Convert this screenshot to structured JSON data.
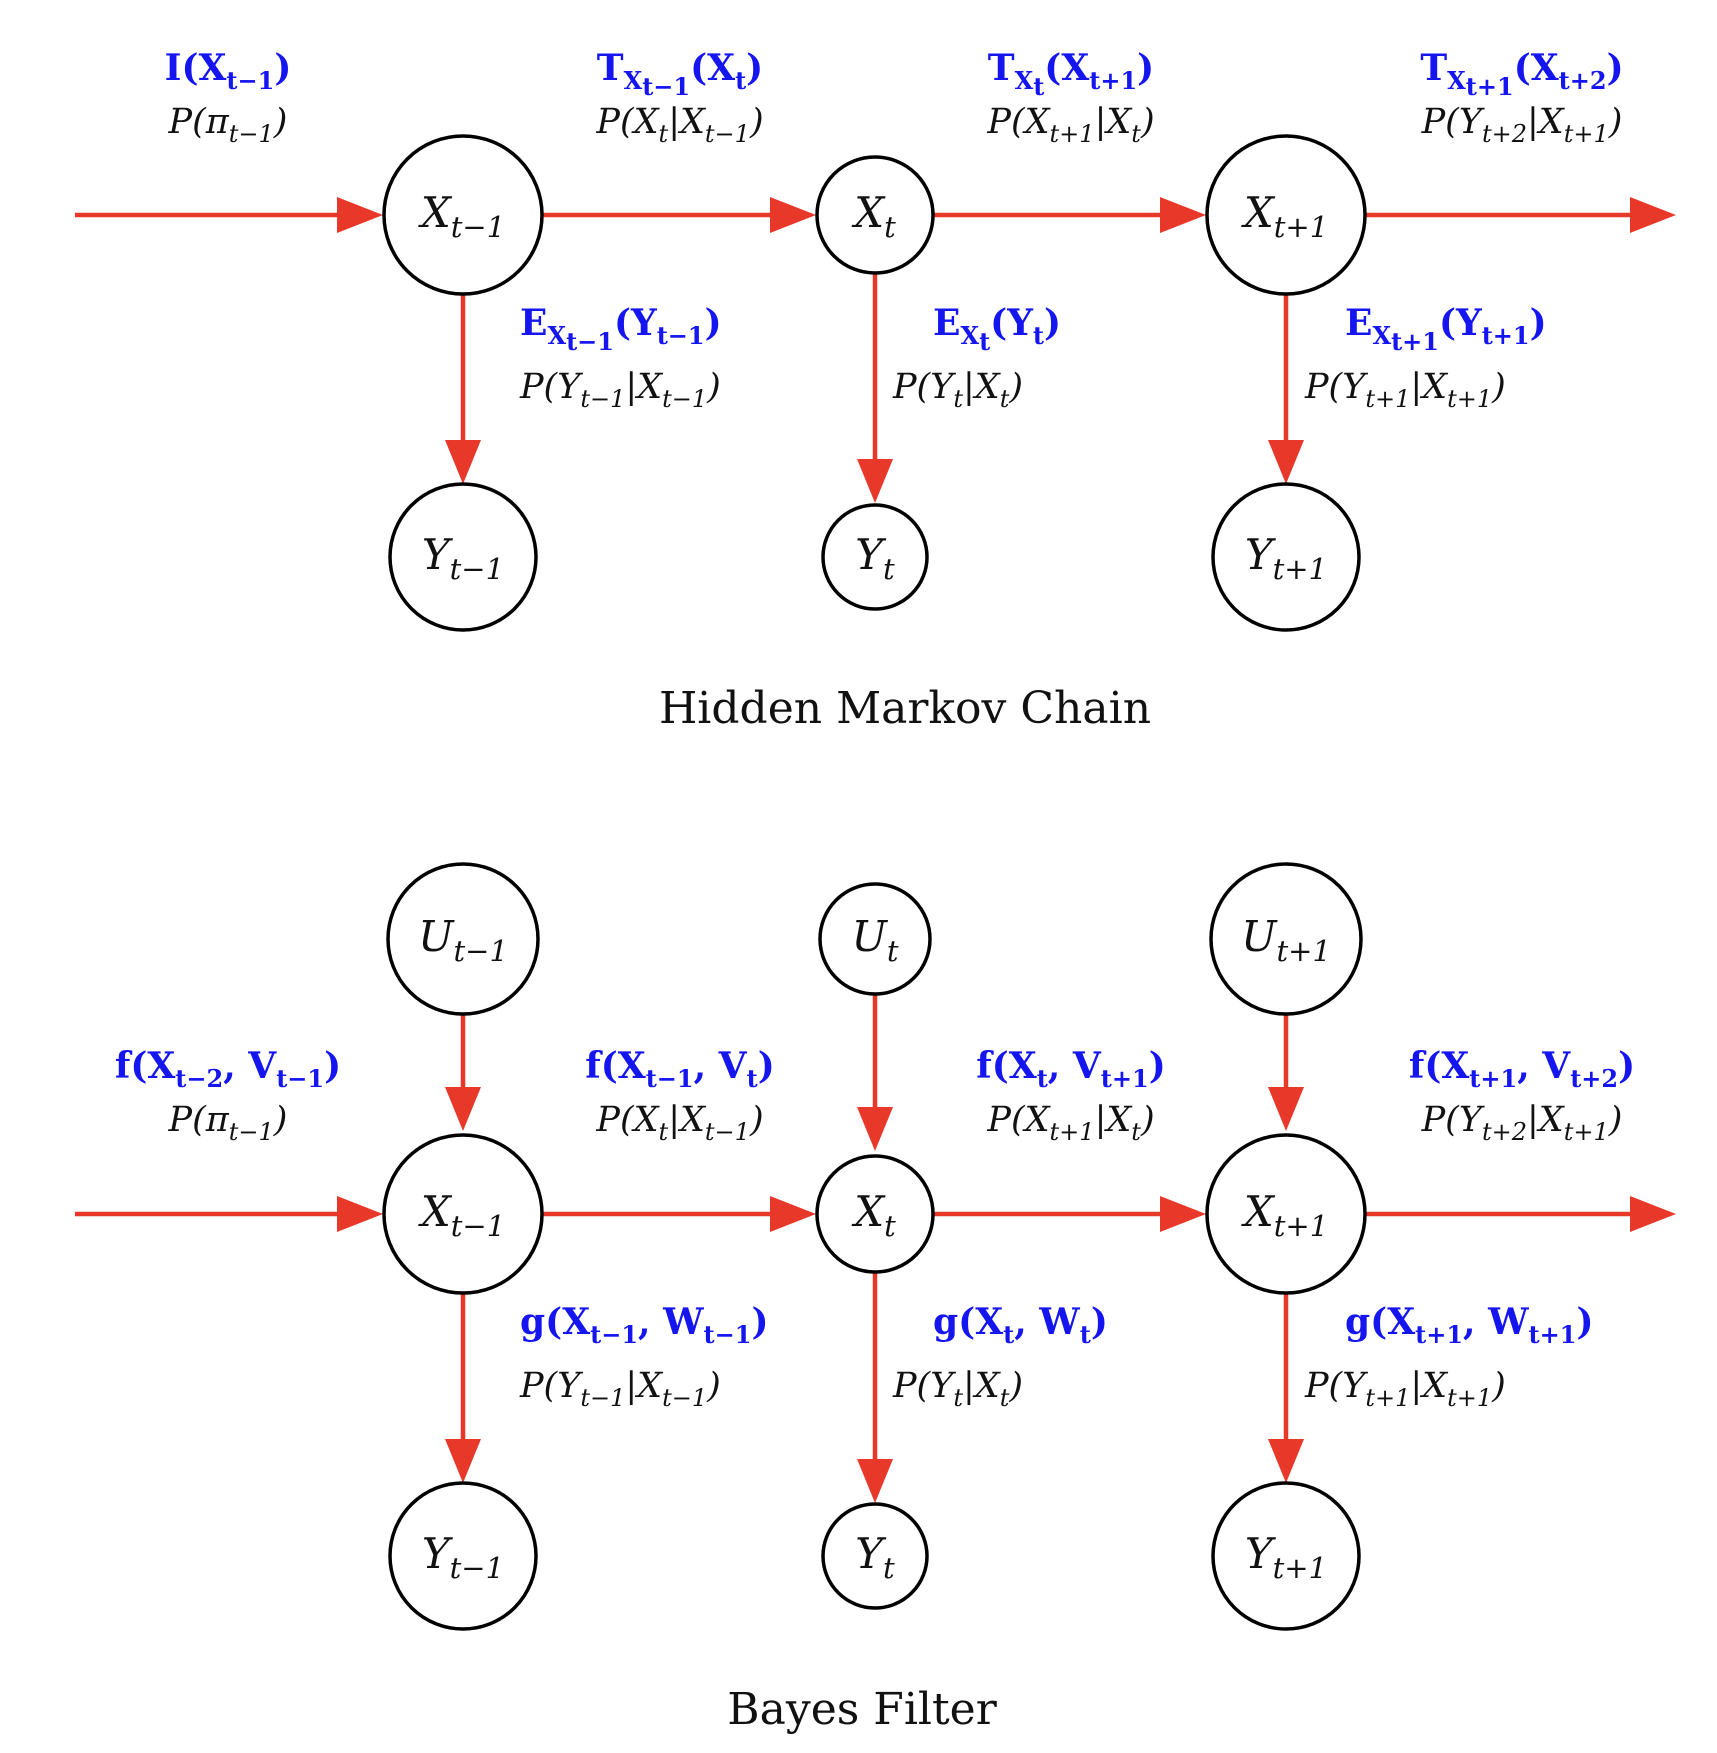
{
  "panels": [
    {
      "caption": "Hidden Markov Chain",
      "nodes": {
        "x_prev": {
          "base": "X",
          "sub": "t−1"
        },
        "x_cur": {
          "base": "X",
          "sub": "t"
        },
        "x_next": {
          "base": "X",
          "sub": "t+1"
        },
        "y_prev": {
          "base": "Y",
          "sub": "t−1"
        },
        "y_cur": {
          "base": "Y",
          "sub": "t"
        },
        "y_next": {
          "base": "Y",
          "sub": "t+1"
        }
      },
      "horizontal_labels": [
        {
          "blue": [
            [
              "I(X",
              ""
            ],
            [
              "t−1",
              "sub"
            ],
            [
              ")",
              ""
            ]
          ],
          "black": [
            [
              "P(π",
              ""
            ],
            [
              "t−1",
              "sub"
            ],
            [
              ")",
              ""
            ]
          ]
        },
        {
          "blue": [
            [
              "T",
              ""
            ],
            [
              "X",
              "sub"
            ],
            [
              "t−1",
              "subsub"
            ],
            [
              "(X",
              ""
            ],
            [
              "t",
              "sub"
            ],
            [
              ")",
              ""
            ]
          ],
          "black": [
            [
              "P(X",
              ""
            ],
            [
              "t",
              "sub"
            ],
            [
              "|X",
              ""
            ],
            [
              "t−1",
              "sub"
            ],
            [
              ")",
              ""
            ]
          ]
        },
        {
          "blue": [
            [
              "T",
              ""
            ],
            [
              "X",
              "sub"
            ],
            [
              "t",
              "subsub"
            ],
            [
              "(X",
              ""
            ],
            [
              "t+1",
              "sub"
            ],
            [
              ")",
              ""
            ]
          ],
          "black": [
            [
              "P(X",
              ""
            ],
            [
              "t+1",
              "sub"
            ],
            [
              "|X",
              ""
            ],
            [
              "t",
              "sub"
            ],
            [
              ")",
              ""
            ]
          ]
        },
        {
          "blue": [
            [
              "T",
              ""
            ],
            [
              "X",
              "sub"
            ],
            [
              "t+1",
              "subsub"
            ],
            [
              "(X",
              ""
            ],
            [
              "t+2",
              "sub"
            ],
            [
              ")",
              ""
            ]
          ],
          "black": [
            [
              "P(Y",
              ""
            ],
            [
              "t+2",
              "sub"
            ],
            [
              "|X",
              ""
            ],
            [
              "t+1",
              "sub"
            ],
            [
              ")",
              ""
            ]
          ]
        }
      ],
      "vertical_labels": [
        {
          "blue": [
            [
              "E",
              ""
            ],
            [
              "X",
              "sub"
            ],
            [
              "t−1",
              "subsub"
            ],
            [
              "(Y",
              ""
            ],
            [
              "t−1",
              "sub"
            ],
            [
              ")",
              ""
            ]
          ],
          "black": [
            [
              "P(Y",
              ""
            ],
            [
              "t−1",
              "sub"
            ],
            [
              "|X",
              ""
            ],
            [
              "t−1",
              "sub"
            ],
            [
              ")",
              ""
            ]
          ]
        },
        {
          "blue": [
            [
              "E",
              ""
            ],
            [
              "X",
              "sub"
            ],
            [
              "t",
              "subsub"
            ],
            [
              "(Y",
              ""
            ],
            [
              "t",
              "sub"
            ],
            [
              ")",
              ""
            ]
          ],
          "black": [
            [
              "P(Y",
              ""
            ],
            [
              "t",
              "sub"
            ],
            [
              "|X",
              ""
            ],
            [
              "t",
              "sub"
            ],
            [
              ")",
              ""
            ]
          ]
        },
        {
          "blue": [
            [
              "E",
              ""
            ],
            [
              "X",
              "sub"
            ],
            [
              "t+1",
              "subsub"
            ],
            [
              "(Y",
              ""
            ],
            [
              "t+1",
              "sub"
            ],
            [
              ")",
              ""
            ]
          ],
          "black": [
            [
              "P(Y",
              ""
            ],
            [
              "t+1",
              "sub"
            ],
            [
              "|X",
              ""
            ],
            [
              "t+1",
              "sub"
            ],
            [
              ")",
              ""
            ]
          ]
        }
      ]
    },
    {
      "caption": "Bayes Filter",
      "nodes": {
        "u_prev": {
          "base": "U",
          "sub": "t−1"
        },
        "u_cur": {
          "base": "U",
          "sub": "t"
        },
        "u_next": {
          "base": "U",
          "sub": "t+1"
        },
        "x_prev": {
          "base": "X",
          "sub": "t−1"
        },
        "x_cur": {
          "base": "X",
          "sub": "t"
        },
        "x_next": {
          "base": "X",
          "sub": "t+1"
        },
        "y_prev": {
          "base": "Y",
          "sub": "t−1"
        },
        "y_cur": {
          "base": "Y",
          "sub": "t"
        },
        "y_next": {
          "base": "Y",
          "sub": "t+1"
        }
      },
      "horizontal_labels": [
        {
          "blue": [
            [
              "f(X",
              ""
            ],
            [
              "t−2",
              "sub"
            ],
            [
              ", V",
              ""
            ],
            [
              "t−1",
              "sub"
            ],
            [
              ")",
              ""
            ]
          ],
          "black": [
            [
              "P(π",
              ""
            ],
            [
              "t−1",
              "sub"
            ],
            [
              ")",
              ""
            ]
          ]
        },
        {
          "blue": [
            [
              "f(X",
              ""
            ],
            [
              "t−1",
              "sub"
            ],
            [
              ", V",
              ""
            ],
            [
              "t",
              "sub"
            ],
            [
              ")",
              ""
            ]
          ],
          "black": [
            [
              "P(X",
              ""
            ],
            [
              "t",
              "sub"
            ],
            [
              "|X",
              ""
            ],
            [
              "t−1",
              "sub"
            ],
            [
              ")",
              ""
            ]
          ]
        },
        {
          "blue": [
            [
              "f(X",
              ""
            ],
            [
              "t",
              "sub"
            ],
            [
              ", V",
              ""
            ],
            [
              "t+1",
              "sub"
            ],
            [
              ")",
              ""
            ]
          ],
          "black": [
            [
              "P(X",
              ""
            ],
            [
              "t+1",
              "sub"
            ],
            [
              "|X",
              ""
            ],
            [
              "t",
              "sub"
            ],
            [
              ")",
              ""
            ]
          ]
        },
        {
          "blue": [
            [
              "f(X",
              ""
            ],
            [
              "t+1",
              "sub"
            ],
            [
              ", V",
              ""
            ],
            [
              "t+2",
              "sub"
            ],
            [
              ")",
              ""
            ]
          ],
          "black": [
            [
              "P(Y",
              ""
            ],
            [
              "t+2",
              "sub"
            ],
            [
              "|X",
              ""
            ],
            [
              "t+1",
              "sub"
            ],
            [
              ")",
              ""
            ]
          ]
        }
      ],
      "vertical_labels": [
        {
          "blue": [
            [
              "g(X",
              ""
            ],
            [
              "t−1",
              "sub"
            ],
            [
              ", W",
              ""
            ],
            [
              "t−1",
              "sub"
            ],
            [
              ")",
              ""
            ]
          ],
          "black": [
            [
              "P(Y",
              ""
            ],
            [
              "t−1",
              "sub"
            ],
            [
              "|X",
              ""
            ],
            [
              "t−1",
              "sub"
            ],
            [
              ")",
              ""
            ]
          ]
        },
        {
          "blue": [
            [
              "g(X",
              ""
            ],
            [
              "t",
              "sub"
            ],
            [
              ", W",
              ""
            ],
            [
              "t",
              "sub"
            ],
            [
              ")",
              ""
            ]
          ],
          "black": [
            [
              "P(Y",
              ""
            ],
            [
              "t",
              "sub"
            ],
            [
              "|X",
              ""
            ],
            [
              "t",
              "sub"
            ],
            [
              ")",
              ""
            ]
          ]
        },
        {
          "blue": [
            [
              "g(X",
              ""
            ],
            [
              "t+1",
              "sub"
            ],
            [
              ", W",
              ""
            ],
            [
              "t+1",
              "sub"
            ],
            [
              ")",
              ""
            ]
          ],
          "black": [
            [
              "P(Y",
              ""
            ],
            [
              "t+1",
              "sub"
            ],
            [
              "|X",
              ""
            ],
            [
              "t+1",
              "sub"
            ],
            [
              ")",
              ""
            ]
          ]
        }
      ]
    }
  ],
  "colors": {
    "edge": "#e8382a",
    "blue_label": "#1515f0",
    "black_label": "#111111"
  }
}
